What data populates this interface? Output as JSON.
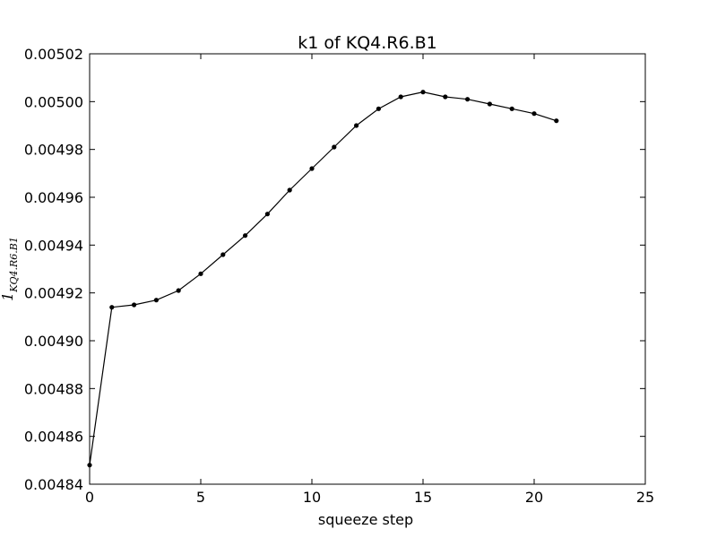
{
  "chart_data": {
    "type": "line",
    "title": "k1 of KQ4.R6.B1",
    "xlabel": "squeeze step",
    "ylabel": {
      "base": "1",
      "subscript": "KQ4.R6.B1"
    },
    "xlim": [
      0,
      25
    ],
    "ylim": [
      0.00484,
      0.00502
    ],
    "xticks": [
      0,
      5,
      10,
      15,
      20,
      25
    ],
    "xtick_labels": [
      "0",
      "5",
      "10",
      "15",
      "20",
      "25"
    ],
    "yticks": [
      0.00484,
      0.00486,
      0.00488,
      0.0049,
      0.00492,
      0.00494,
      0.00496,
      0.00498,
      0.005,
      0.00502
    ],
    "ytick_labels": [
      "0.00484",
      "0.00486",
      "0.00488",
      "0.00490",
      "0.00492",
      "0.00494",
      "0.00496",
      "0.00498",
      "0.00500",
      "0.00502"
    ],
    "grid": false,
    "legend": "none",
    "series": [
      {
        "x": [
          0,
          1,
          2,
          3,
          4,
          5,
          6,
          7,
          8,
          9,
          10,
          11,
          12,
          13,
          14,
          15,
          16,
          17,
          18,
          19,
          20,
          21
        ],
        "y": [
          0.004848,
          0.004914,
          0.004915,
          0.004917,
          0.004921,
          0.004928,
          0.004936,
          0.004944,
          0.004953,
          0.004963,
          0.004972,
          0.004981,
          0.00499,
          0.004997,
          0.005002,
          0.005004,
          0.005002,
          0.005001,
          0.004999,
          0.004997,
          0.004995,
          0.004992
        ],
        "color": "#000000",
        "marker": "dot"
      }
    ]
  }
}
